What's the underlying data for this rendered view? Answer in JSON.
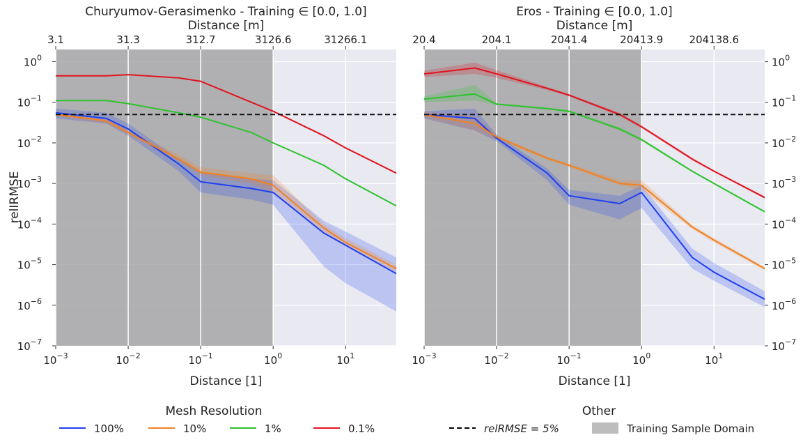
{
  "y_axis_label": "relIRMSE",
  "legends": {
    "mesh": {
      "title": "Mesh Resolution",
      "items": [
        {
          "label": "100%",
          "color": "#1f3ff0",
          "style": "solid"
        },
        {
          "label": "10%",
          "color": "#f28120",
          "style": "solid"
        },
        {
          "label": "1%",
          "color": "#2ec22e",
          "style": "solid"
        },
        {
          "label": "0.1%",
          "color": "#e0141f",
          "style": "solid"
        }
      ]
    },
    "other": {
      "title": "Other",
      "items": [
        {
          "label": "relRMSE = 5%",
          "color": "#000000",
          "style": "dashed"
        },
        {
          "label": "Training Sample Domain",
          "color": "#bdbdbd",
          "style": "patch"
        }
      ]
    }
  },
  "chart_data": [
    {
      "type": "line",
      "title": "Churyumov-Gerasimenko - Training ∈ [0.0, 1.0]",
      "xlabel": "Distance [1]",
      "top_xlabel": "Distance [m]",
      "ylabel": "relIRMSE",
      "x_scale": "log",
      "y_scale": "log",
      "xlim": [
        0.001,
        50
      ],
      "ylim": [
        1e-07,
        2
      ],
      "x_tick_labels": [
        "10^-3",
        "10^-2",
        "10^-1",
        "10^0",
        "10^1"
      ],
      "y_tick_labels": [
        "10^-7",
        "10^-6",
        "10^-5",
        "10^-4",
        "10^-3",
        "10^-2",
        "10^-1",
        "10^0"
      ],
      "top_tick_labels": [
        "3.1",
        "31.3",
        "312.7",
        "3126.6",
        "31266.1"
      ],
      "training_domain": [
        0.0,
        1.0
      ],
      "threshold": 0.05,
      "grid": true,
      "x": [
        0.001,
        0.005,
        0.01,
        0.05,
        0.1,
        0.5,
        1,
        5,
        10,
        50
      ],
      "series": [
        {
          "name": "100%",
          "values": [
            0.055,
            0.04,
            0.022,
            0.003,
            0.0011,
            0.00075,
            0.0006,
            6e-05,
            3e-05,
            6e-06
          ],
          "lower": [
            0.04,
            0.03,
            0.015,
            0.002,
            0.0006,
            0.0004,
            0.0003,
            9e-06,
            3.5e-06,
            7e-07
          ],
          "upper": [
            0.07,
            0.055,
            0.03,
            0.004,
            0.0019,
            0.0013,
            0.0012,
            0.00012,
            6.5e-05,
            1.5e-05
          ]
        },
        {
          "name": "10%",
          "values": [
            0.05,
            0.035,
            0.018,
            0.004,
            0.0019,
            0.0013,
            0.0009,
            8e-05,
            3.5e-05,
            8e-06
          ],
          "lower": [
            0.045,
            0.03,
            0.016,
            0.0035,
            0.0016,
            0.001,
            0.0006,
            6e-05,
            2.8e-05,
            6.5e-06
          ],
          "upper": [
            0.056,
            0.04,
            0.021,
            0.005,
            0.0025,
            0.0018,
            0.0016,
            0.0001,
            4.5e-05,
            1e-05
          ]
        },
        {
          "name": "1%",
          "values": [
            0.11,
            0.11,
            0.093,
            0.055,
            0.043,
            0.018,
            0.01,
            0.0028,
            0.0013,
            0.00028
          ]
        },
        {
          "name": "0.1%",
          "values": [
            0.45,
            0.45,
            0.48,
            0.4,
            0.33,
            0.1,
            0.06,
            0.015,
            0.0075,
            0.0018
          ]
        }
      ]
    },
    {
      "type": "line",
      "title": "Eros - Training ∈ [0.0, 1.0]",
      "xlabel": "Distance [1]",
      "top_xlabel": "Distance [m]",
      "x_scale": "log",
      "y_scale": "log",
      "xlim": [
        0.001,
        50
      ],
      "ylim": [
        1e-07,
        2
      ],
      "x_tick_labels": [
        "10^-3",
        "10^-2",
        "10^-1",
        "10^0",
        "10^1"
      ],
      "y_tick_labels": [
        "10^-7",
        "10^-6",
        "10^-5",
        "10^-4",
        "10^-3",
        "10^-2",
        "10^-1",
        "10^0"
      ],
      "top_tick_labels": [
        "20.4",
        "204.1",
        "2041.4",
        "20413.9",
        "204138.6"
      ],
      "training_domain": [
        0.0,
        1.0
      ],
      "threshold": 0.05,
      "grid": true,
      "x": [
        0.001,
        0.005,
        0.01,
        0.05,
        0.1,
        0.5,
        1,
        5,
        10,
        50
      ],
      "series": [
        {
          "name": "100%",
          "values": [
            0.05,
            0.04,
            0.013,
            0.0018,
            0.0005,
            0.00032,
            0.0006,
            1.5e-05,
            6.5e-06,
            1.4e-06
          ],
          "lower": [
            0.04,
            0.02,
            0.011,
            0.0012,
            0.0003,
            0.00013,
            0.00025,
            8e-06,
            4e-06,
            9e-07
          ],
          "upper": [
            0.06,
            0.07,
            0.016,
            0.0023,
            0.0007,
            0.0005,
            0.0009,
            2.5e-05,
            1.1e-05,
            2.2e-06
          ]
        },
        {
          "name": "10%",
          "values": [
            0.05,
            0.03,
            0.014,
            0.0042,
            0.0028,
            0.001,
            0.0009,
            8.5e-05,
            4e-05,
            8e-06
          ],
          "lower": [
            0.042,
            0.02,
            0.012,
            0.0038,
            0.0025,
            0.0009,
            0.0007,
            7.5e-05,
            3.5e-05,
            7.2e-06
          ],
          "upper": [
            0.058,
            0.045,
            0.016,
            0.0046,
            0.0031,
            0.0012,
            0.0012,
            9.5e-05,
            4.5e-05,
            8.8e-06
          ]
        },
        {
          "name": "1%",
          "values": [
            0.12,
            0.16,
            0.09,
            0.07,
            0.06,
            0.022,
            0.012,
            0.002,
            0.001,
            0.0002
          ],
          "lower": [
            0.1,
            0.11,
            0.085,
            0.066,
            0.056,
            0.02,
            0.011,
            0.0019,
            0.00095,
            0.00019
          ],
          "upper": [
            0.14,
            0.27,
            0.095,
            0.074,
            0.064,
            0.024,
            0.013,
            0.0021,
            0.00105,
            0.00021
          ]
        },
        {
          "name": "0.1%",
          "values": [
            0.5,
            0.7,
            0.5,
            0.22,
            0.15,
            0.05,
            0.025,
            0.004,
            0.002,
            0.00045
          ],
          "lower": [
            0.42,
            0.5,
            0.4,
            0.2,
            0.14,
            0.045,
            0.023,
            0.0037,
            0.0019,
            0.00042
          ],
          "upper": [
            0.6,
            0.95,
            0.62,
            0.24,
            0.16,
            0.055,
            0.027,
            0.0043,
            0.0021,
            0.00048
          ]
        }
      ]
    }
  ]
}
